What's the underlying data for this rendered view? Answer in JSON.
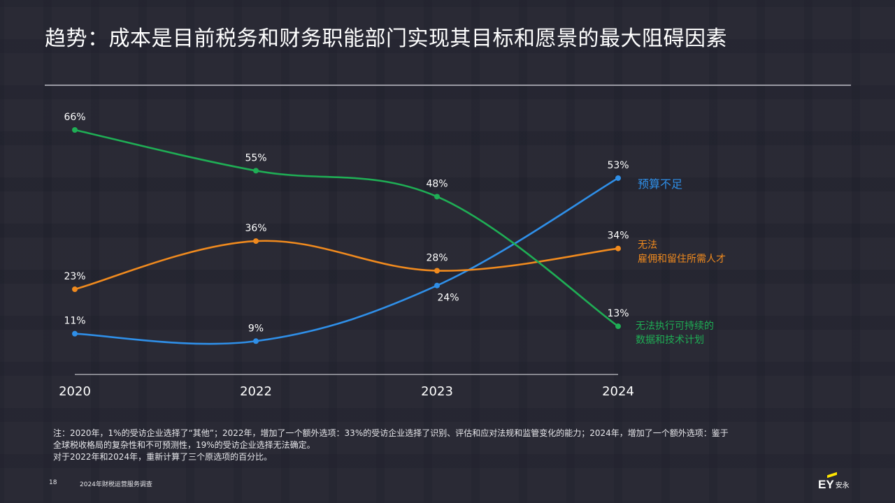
{
  "title": "趋势：成本是目前税务和财务职能部门实现其目标和愿景的最大阻碍因素",
  "colors": {
    "budget": "#2f8fe8",
    "talent": "#f08a1e",
    "data_tech": "#1fae55",
    "logo_accent": "#ffe600"
  },
  "chart_data": {
    "type": "line",
    "categories": [
      "2020",
      "2022",
      "2023",
      "2024"
    ],
    "series": [
      {
        "name": "预算不足",
        "values": [
          11,
          9,
          24,
          53
        ],
        "labels": [
          "11%",
          "9%",
          "24%",
          "53%"
        ]
      },
      {
        "name": "无法\n雇佣和留住所需人才",
        "values": [
          23,
          36,
          28,
          34
        ],
        "labels": [
          "23%",
          "36%",
          "28%",
          "34%"
        ]
      },
      {
        "name": "无法执行可持续的\n数据和技术计划",
        "values": [
          66,
          55,
          48,
          13
        ],
        "labels": [
          "66%",
          "55%",
          "48%",
          "13%"
        ]
      }
    ],
    "ylim": [
      0,
      70
    ],
    "grid": false,
    "legend": "right"
  },
  "footnote": {
    "line1": "注：2020年，1%的受访企业选择了“其他”；2022年，增加了一个额外选项：33%的受访企业选择了识别、评估和应对法规和监管变化的能力；2024年，增加了一个额外选项：鉴于",
    "line2": "全球税收格局的复杂性和不可预测性，19%的受访企业选择无法确定。",
    "line3": "对于2022年和2024年，重新计算了三个原选项的百分比。"
  },
  "footer": {
    "page_number": "18",
    "doc_name": "2024年财税运营服务调查",
    "logo_mark": "EY",
    "logo_cn": "安永"
  }
}
